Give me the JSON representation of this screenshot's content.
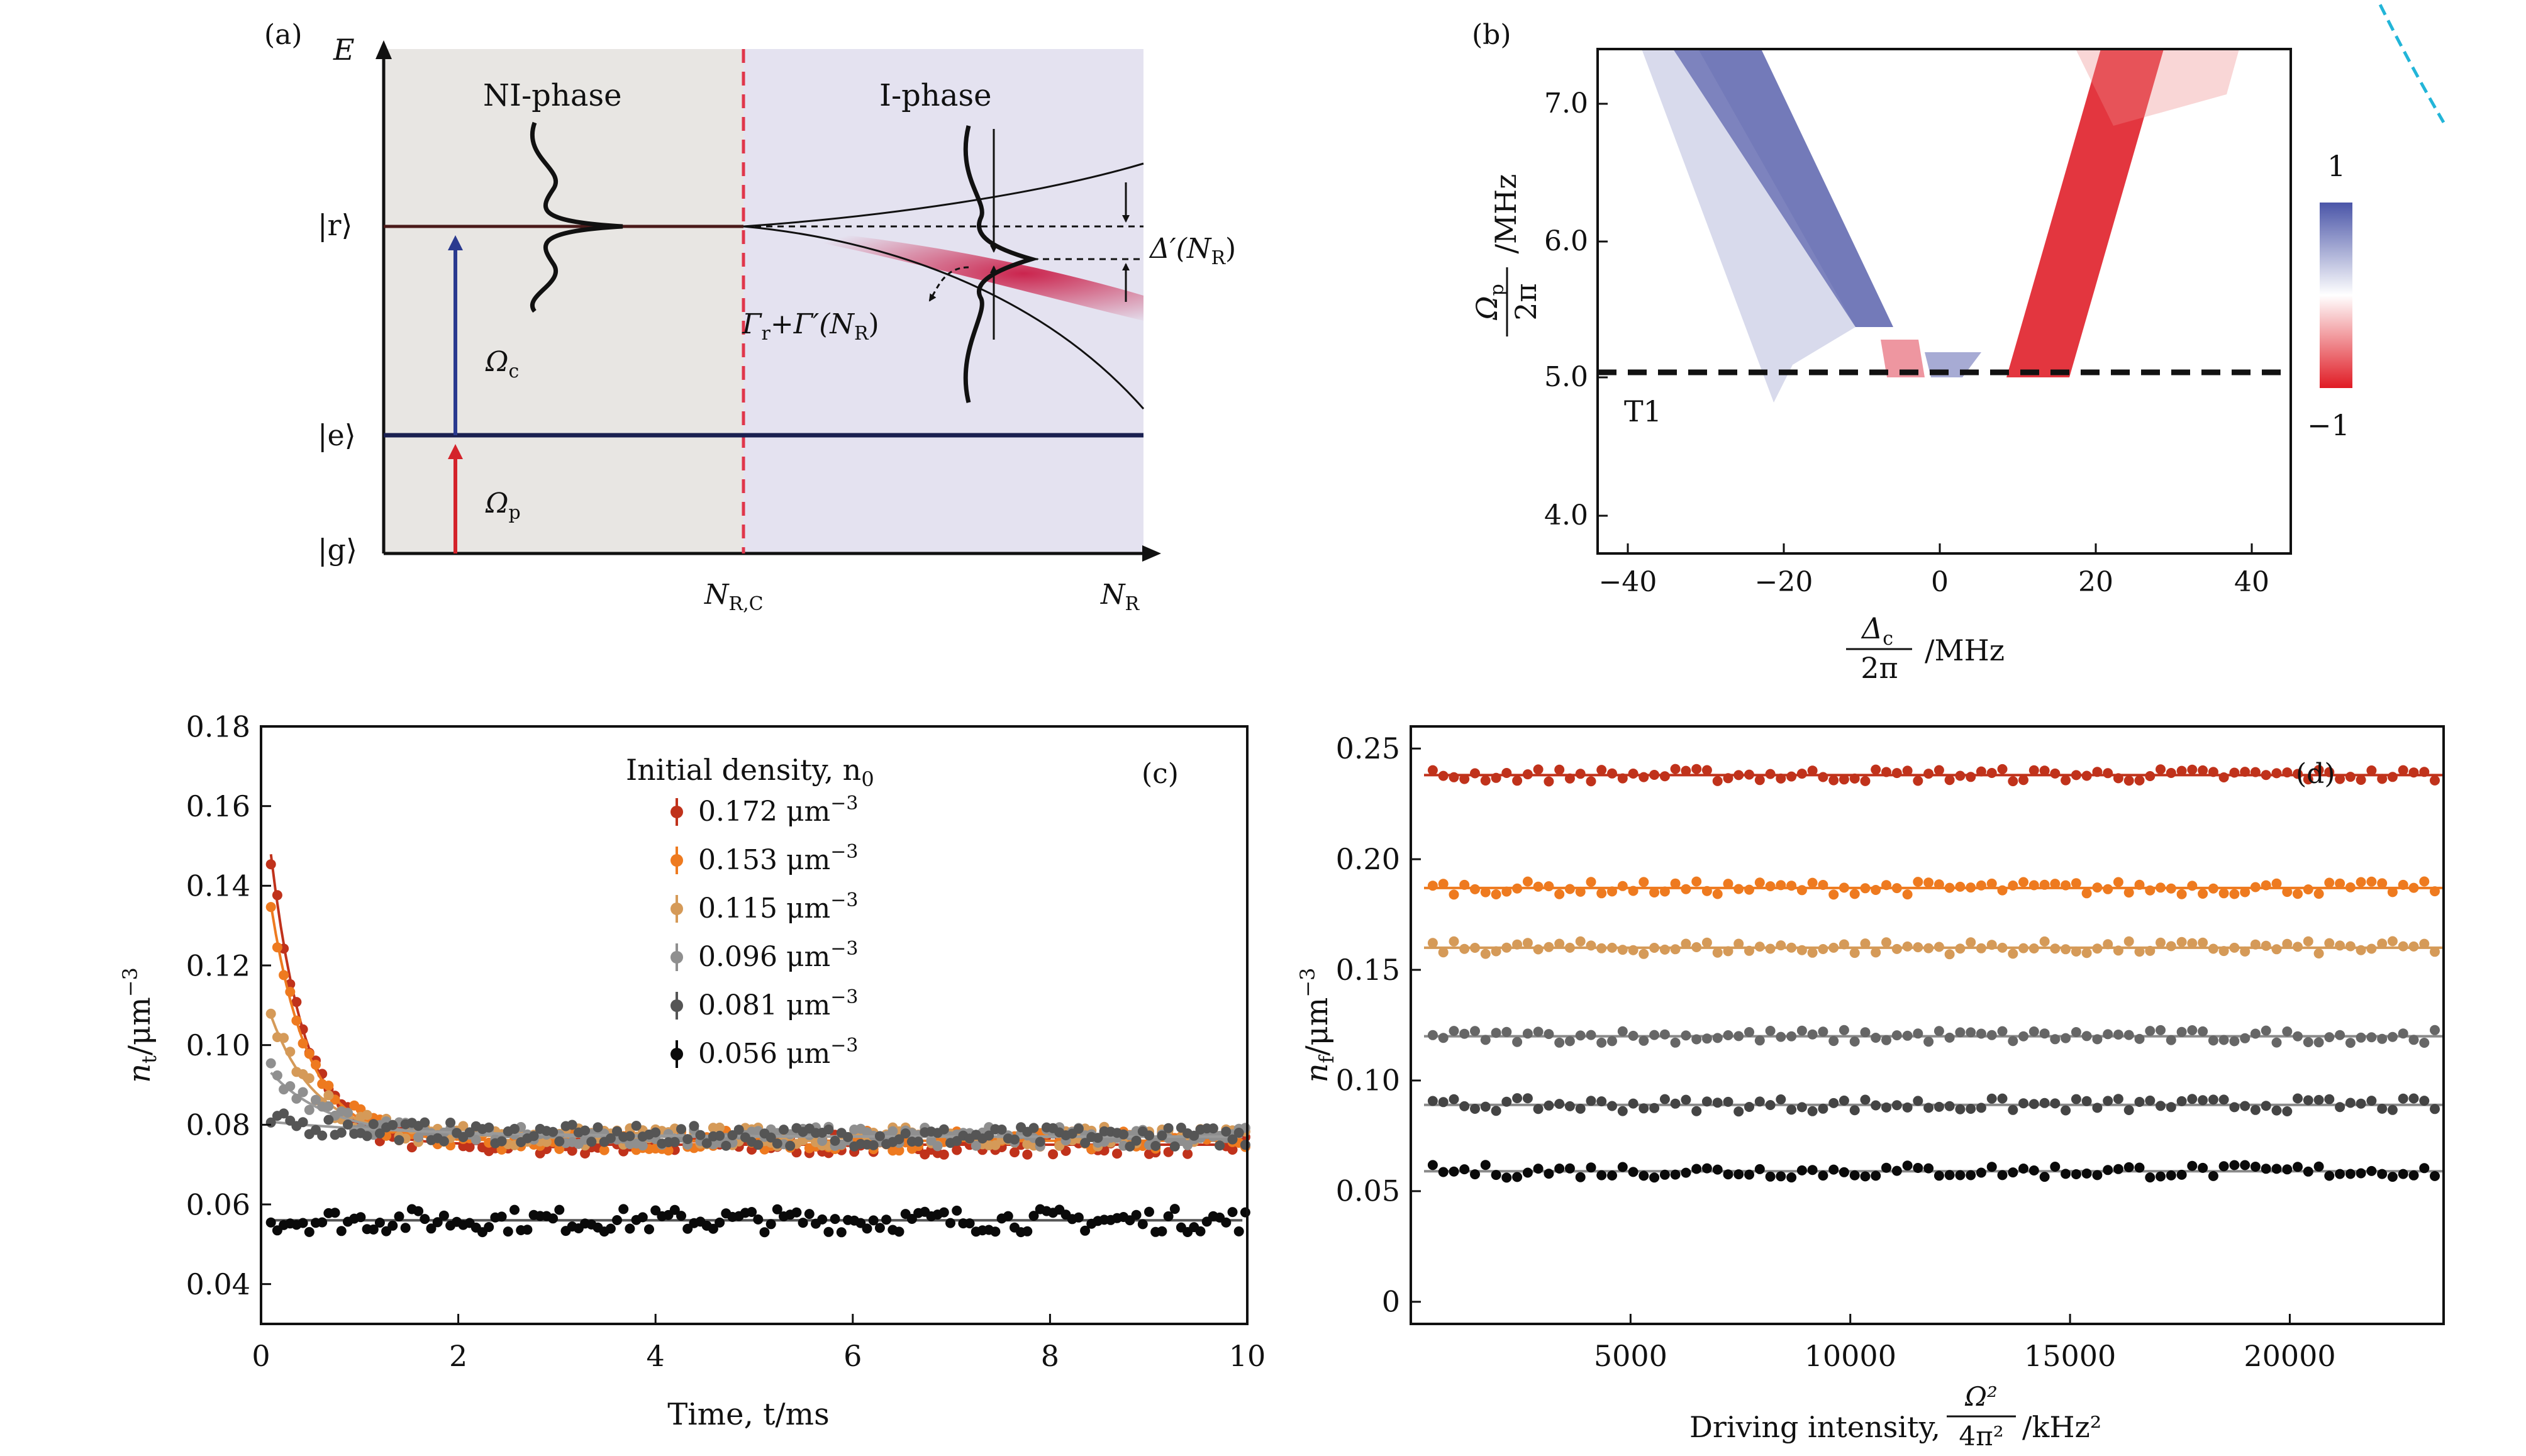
{
  "panel_a": {
    "label": "(a)",
    "axis_y_label": "E",
    "axis_x_crit": "N",
    "axis_x_crit_sub": "R,C",
    "axis_x_label": "N",
    "axis_x_label_sub": "R",
    "ni_phase": "NI-phase",
    "i_phase": "I-phase",
    "level_r": "|r⟩",
    "level_e": "|e⟩",
    "level_g": "|g⟩",
    "omega_c": "Ω",
    "omega_c_sub": "c",
    "omega_p": "Ω",
    "omega_p_sub": "p",
    "delta_prime": "Δ′(N",
    "delta_prime_sub": "R",
    "delta_prime_end": ")",
    "gamma_text": "Γ",
    "gamma_sub": "r",
    "gamma_mid": "+Γ′(N",
    "gamma_sub2": "R",
    "gamma_end": ")",
    "colors": {
      "ni_bg": "#e8e6e3",
      "i_bg": "#e4e2f0",
      "crit_line": "#e0364b",
      "omega_c_arrow": "#2a3a8f",
      "omega_p_arrow": "#d4232b",
      "level_e": "#1a2050",
      "shade": "#c8103c"
    }
  },
  "panel_b": {
    "label": "(b)",
    "y_ticks": [
      "4.0",
      "5.0",
      "6.0",
      "7.0"
    ],
    "x_ticks": [
      "−40",
      "−20",
      "0",
      "20",
      "40"
    ],
    "colorbar_top": "1",
    "colorbar_bottom": "−1",
    "t1_label": "T1",
    "y_axis_num": "Ω",
    "y_axis_num_sub": "p",
    "y_axis_den": "2π",
    "y_axis_unit": "/MHz",
    "x_axis_num": "Δ",
    "x_axis_num_sub": "c",
    "x_axis_den": "2π",
    "x_axis_unit": "/MHz",
    "colors": {
      "positive": "#4a55a8",
      "negative": "#e01b24"
    }
  },
  "chart_data": [
    {
      "type": "scatter",
      "panel": "(c)",
      "xlabel": "Time, t/ms",
      "ylabel": "n_t/μm^−3",
      "xlim": [
        0,
        10
      ],
      "ylim": [
        0.03,
        0.18
      ],
      "x_ticks": [
        0,
        2,
        4,
        6,
        8,
        10
      ],
      "y_ticks": [
        0.04,
        0.06,
        0.08,
        0.1,
        0.12,
        0.14,
        0.16,
        0.18
      ],
      "legend_title": "Initial density, n0",
      "legend_placement": "top-center",
      "series": [
        {
          "name": "0.172 μm^−3",
          "color": "#c0321b",
          "initial": 0.172,
          "steady": 0.075,
          "tau_ms": 0.35
        },
        {
          "name": "0.153 μm^−3",
          "color": "#ee7a1f",
          "initial": 0.153,
          "steady": 0.076,
          "tau_ms": 0.38
        },
        {
          "name": "0.115 μm^−3",
          "color": "#d59a58",
          "initial": 0.115,
          "steady": 0.077,
          "tau_ms": 0.45
        },
        {
          "name": "0.096 μm^−3",
          "color": "#8f8f8f",
          "initial": 0.096,
          "steady": 0.077,
          "tau_ms": 0.6
        },
        {
          "name": "0.081 μm^−3",
          "color": "#555555",
          "initial": 0.081,
          "steady": 0.077,
          "tau_ms": 1.5
        },
        {
          "name": "0.056 μm^−3",
          "color": "#0a0a0a",
          "initial": 0.056,
          "steady": 0.056,
          "tau_ms": 1.0
        }
      ]
    },
    {
      "type": "scatter",
      "panel": "(d)",
      "xlabel": "Driving intensity, Ω²/4π² /kHz²",
      "ylabel": "n_f/μm^−3",
      "xlim": [
        0,
        23500
      ],
      "ylim": [
        -0.01,
        0.26
      ],
      "x_ticks": [
        5000,
        10000,
        15000,
        20000
      ],
      "y_ticks": [
        0,
        0.05,
        0.1,
        0.15,
        0.2,
        0.25
      ],
      "series": [
        {
          "name": "",
          "color": "#c0321b",
          "plateau": 0.238
        },
        {
          "name": "",
          "color": "#ee7a1f",
          "plateau": 0.187
        },
        {
          "name": "",
          "color": "#d59a58",
          "plateau": 0.16
        },
        {
          "name": "",
          "color": "#666666",
          "plateau": 0.12
        },
        {
          "name": "",
          "color": "#444444",
          "plateau": 0.089
        },
        {
          "name": "",
          "color": "#0a0a0a",
          "plateau": 0.059
        }
      ],
      "dashed_fit": {
        "color": "#22b5d8",
        "k": 1920000,
        "p": 1.5,
        "x_start": 3200
      }
    }
  ],
  "panel_c": {
    "label": "(c)",
    "x_ticks": [
      "0",
      "2",
      "4",
      "6",
      "8",
      "10"
    ],
    "y_ticks": [
      "0.04",
      "0.06",
      "0.08",
      "0.10",
      "0.12",
      "0.14",
      "0.16",
      "0.18"
    ],
    "xlabel": "Time, t/ms",
    "ylabel_main": "n",
    "ylabel_sub": "t",
    "ylabel_unit": "/μm",
    "ylabel_exp": "−3",
    "legend_title": "Initial density, n",
    "legend_title_sub": "0",
    "legend": [
      "0.172 μm",
      "0.153 μm",
      "0.115 μm",
      "0.096 μm",
      "0.081 μm",
      "0.056 μm"
    ],
    "legend_exp": "−3"
  },
  "panel_d": {
    "label": "(d)",
    "x_ticks": [
      "5000",
      "10000",
      "15000",
      "20000"
    ],
    "y_ticks": [
      "0",
      "0.05",
      "0.10",
      "0.15",
      "0.20",
      "0.25"
    ],
    "xlabel_prefix": "Driving intensity,",
    "xlabel_num": "Ω²",
    "xlabel_den": "4π²",
    "xlabel_unit": "/kHz²",
    "ylabel_main": "n",
    "ylabel_sub": "f",
    "ylabel_unit": "/μm",
    "ylabel_exp": "−3"
  }
}
